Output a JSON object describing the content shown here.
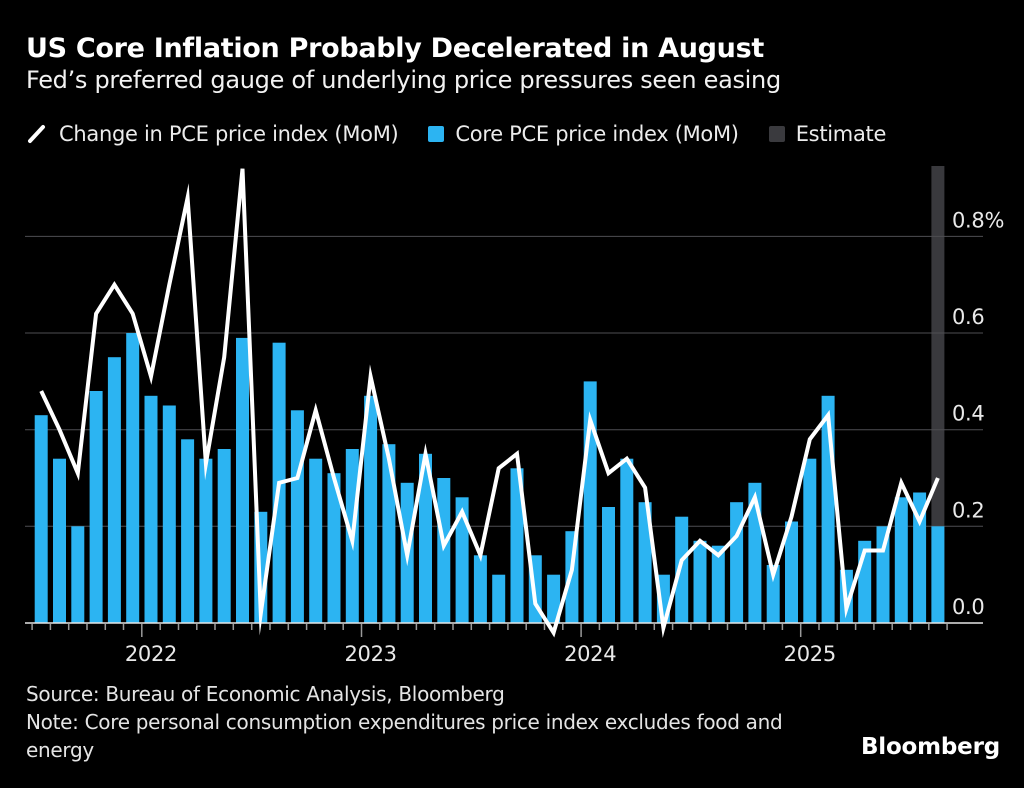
{
  "header": {
    "title": "US Core Inflation Probably Decelerated in August",
    "subtitle": "Fed’s preferred gauge of underlying price pressures seen easing"
  },
  "legend": {
    "items": [
      {
        "label": "Change in PCE price index (MoM)",
        "swatch": "line",
        "color": "#ffffff"
      },
      {
        "label": "Core PCE price index (MoM)",
        "swatch": "square",
        "color": "#2cb4f2"
      },
      {
        "label": "Estimate",
        "swatch": "square",
        "color": "#3a3a3e"
      }
    ]
  },
  "chart_data": {
    "type": "bar+line",
    "x_frequency": "monthly",
    "x_start": "2021-07",
    "x_end": "2025-08",
    "year_labels": [
      "2022",
      "2023",
      "2024",
      "2025"
    ],
    "ylim": [
      -0.05,
      0.95
    ],
    "grid": true,
    "legend_position": "top",
    "yticks": [
      {
        "value": 0.0,
        "label": "0.0"
      },
      {
        "value": 0.2,
        "label": "0.2"
      },
      {
        "value": 0.4,
        "label": "0.4"
      },
      {
        "value": 0.6,
        "label": "0.6"
      },
      {
        "value": 0.8,
        "label": "0.8%"
      }
    ],
    "series": [
      {
        "name": "Change in PCE price index (MoM)",
        "type": "line",
        "color": "#ffffff",
        "values": [
          0.48,
          0.4,
          0.31,
          0.64,
          0.7,
          0.64,
          0.51,
          0.7,
          0.88,
          0.33,
          0.55,
          0.94,
          0.02,
          0.29,
          0.3,
          0.44,
          0.3,
          0.17,
          0.51,
          0.34,
          0.14,
          0.35,
          0.16,
          0.23,
          0.14,
          0.32,
          0.35,
          0.04,
          -0.02,
          0.11,
          0.42,
          0.31,
          0.34,
          0.28,
          -0.01,
          0.13,
          0.17,
          0.14,
          0.18,
          0.26,
          0.1,
          0.22,
          0.38,
          0.43,
          0.03,
          0.15,
          0.15,
          0.29,
          0.21,
          0.3
        ]
      },
      {
        "name": "Core PCE price index (MoM)",
        "type": "bar",
        "color": "#2cb4f2",
        "values": [
          0.43,
          0.34,
          0.2,
          0.48,
          0.55,
          0.6,
          0.47,
          0.45,
          0.38,
          0.34,
          0.36,
          0.59,
          0.23,
          0.58,
          0.44,
          0.34,
          0.31,
          0.36,
          0.47,
          0.37,
          0.29,
          0.35,
          0.3,
          0.26,
          0.14,
          0.1,
          0.32,
          0.14,
          0.1,
          0.19,
          0.5,
          0.24,
          0.34,
          0.25,
          0.1,
          0.22,
          0.17,
          0.16,
          0.25,
          0.29,
          0.12,
          0.21,
          0.34,
          0.47,
          0.11,
          0.17,
          0.2,
          0.26,
          0.27,
          0.2
        ]
      },
      {
        "name": "Estimate",
        "type": "column-band",
        "color": "#39393d",
        "month": "2025-08"
      }
    ]
  },
  "footer": {
    "source": "Source: Bureau of Economic Analysis, Bloomberg",
    "note_lines": [
      "Note: Core personal consumption expenditures price index excludes food and",
      "energy"
    ],
    "brand": "Bloomberg"
  },
  "colors": {
    "background": "#000000",
    "grid": "#4e4e52",
    "axis": "#e6e6e6",
    "tick": "#9a9a9a",
    "text": "#e9e9e9"
  }
}
